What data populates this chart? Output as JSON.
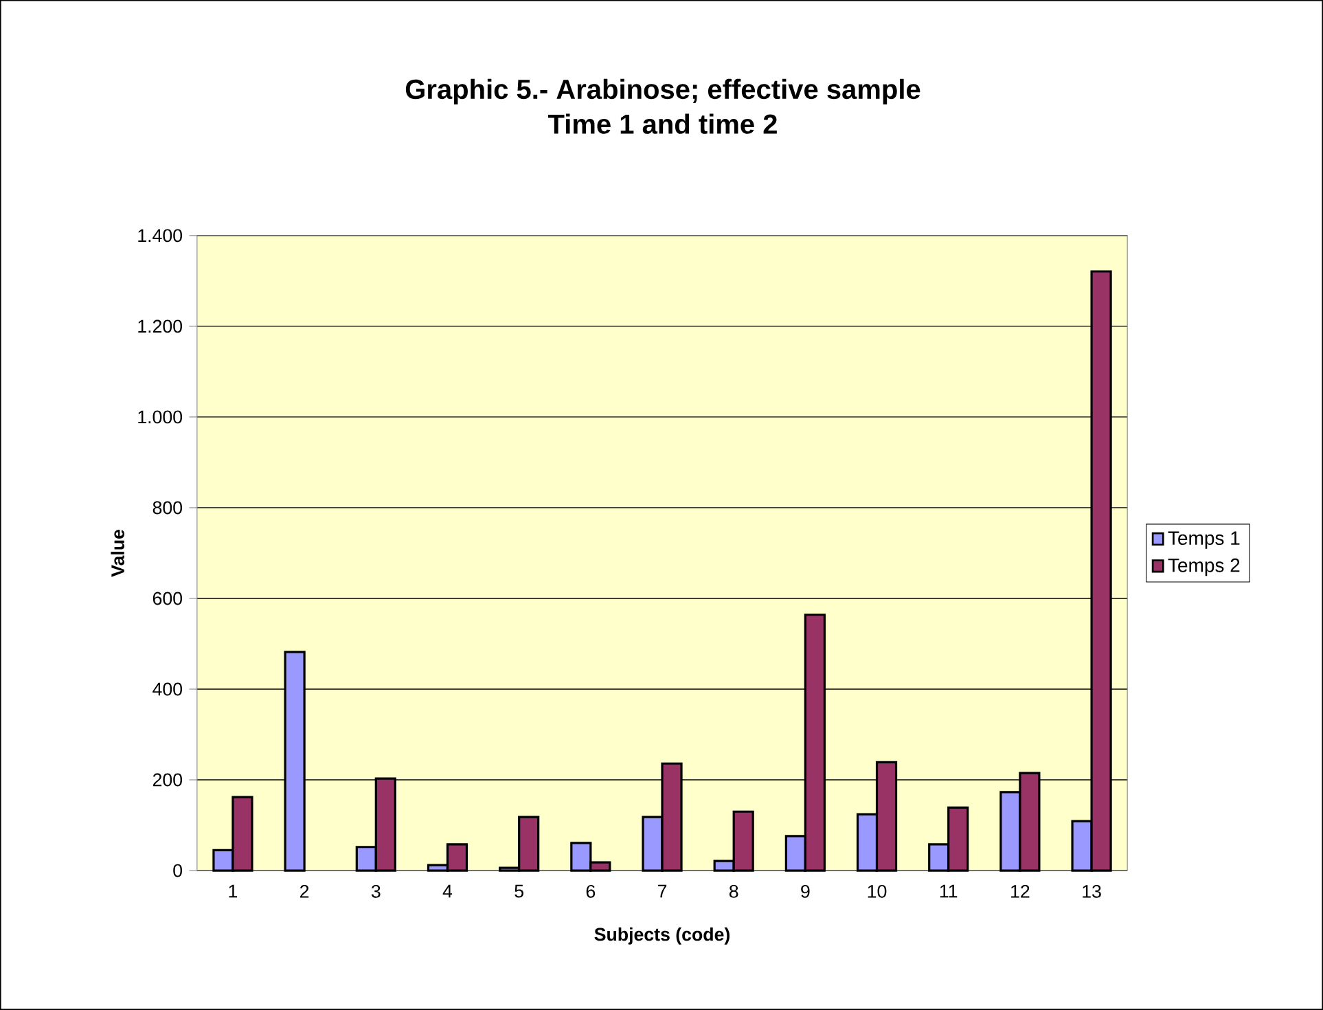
{
  "chart_data": {
    "type": "bar",
    "title": "Graphic 5.- Arabinose; effective sample\nTime 1 and time 2",
    "xlabel": "Subjects (code)",
    "ylabel": "Value",
    "categories": [
      "1",
      "2",
      "3",
      "4",
      "5",
      "6",
      "7",
      "8",
      "9",
      "10",
      "11",
      "12",
      "13"
    ],
    "series": [
      {
        "name": "Temps 1",
        "color": "#9999ff",
        "values": [
          45,
          482,
          52,
          12,
          6,
          61,
          118,
          21,
          76,
          124,
          58,
          173,
          109
        ]
      },
      {
        "name": "Temps 2",
        "color": "#993366",
        "values": [
          162,
          null,
          203,
          58,
          118,
          18,
          236,
          130,
          564,
          239,
          139,
          215,
          1321
        ]
      }
    ],
    "ylim": [
      0,
      1400
    ],
    "yticks": [
      0,
      {
        "value": 200,
        "label": "200"
      },
      {
        "value": 400,
        "label": "400"
      },
      {
        "value": 600,
        "label": "600"
      },
      {
        "value": 800,
        "label": "800"
      },
      {
        "value": 1000,
        "label": "1.000"
      },
      {
        "value": 1200,
        "label": "1.200"
      },
      {
        "value": 1400,
        "label": "1.400"
      }
    ],
    "grid": "y",
    "legend": "right"
  }
}
